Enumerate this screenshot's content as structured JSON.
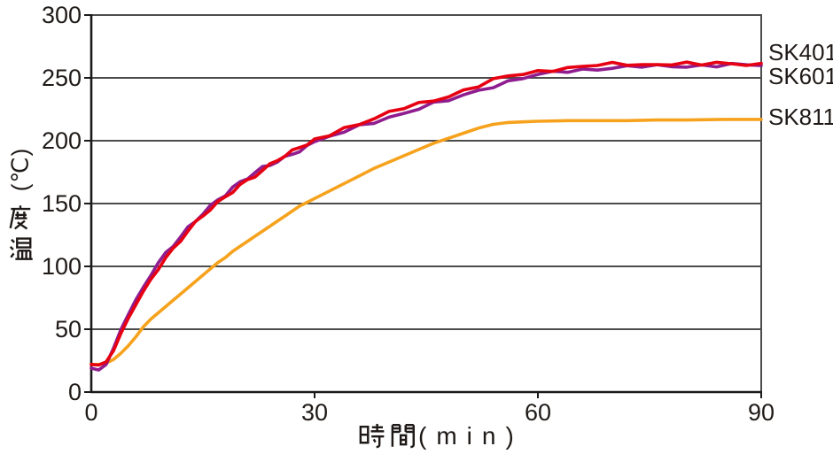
{
  "chart_data": {
    "type": "line",
    "title": "",
    "xlabel": "時間(min)",
    "ylabel": "温度(℃)",
    "xlabel_kanji": "時間",
    "xlabel_unit": "(min)",
    "ylabel_kanji": "温度",
    "ylabel_unit": "(℃)",
    "xlim": [
      0,
      90
    ],
    "ylim": [
      0,
      300
    ],
    "x_ticks": [
      0,
      30,
      60,
      90
    ],
    "y_ticks": [
      0,
      50,
      100,
      150,
      200,
      250,
      300
    ],
    "grid": "horizontal",
    "legend_position": "right-outside",
    "colors": {
      "grid": "#4c4c4c",
      "axis": "#1a1a1a",
      "text": "#1f1a17",
      "background": "#ffffff"
    },
    "series": [
      {
        "name": "SK401",
        "color": "#e60012",
        "points": [
          [
            0,
            22
          ],
          [
            1,
            21.5
          ],
          [
            2,
            24
          ],
          [
            3,
            33
          ],
          [
            4,
            47
          ],
          [
            5,
            59
          ],
          [
            6,
            70
          ],
          [
            7,
            80
          ],
          [
            8,
            90
          ],
          [
            9,
            99
          ],
          [
            10,
            107
          ],
          [
            11,
            114
          ],
          [
            12,
            121
          ],
          [
            13,
            128
          ],
          [
            14,
            134
          ],
          [
            15,
            140
          ],
          [
            16,
            145
          ],
          [
            17,
            150
          ],
          [
            18,
            155
          ],
          [
            19,
            160
          ],
          [
            20,
            165
          ],
          [
            21,
            169
          ],
          [
            22,
            173
          ],
          [
            23,
            177
          ],
          [
            24,
            181
          ],
          [
            25,
            185
          ],
          [
            26,
            188
          ],
          [
            27,
            191
          ],
          [
            28,
            194
          ],
          [
            29,
            197
          ],
          [
            30,
            200
          ],
          [
            32,
            205
          ],
          [
            34,
            210
          ],
          [
            36,
            214
          ],
          [
            38,
            218
          ],
          [
            40,
            222
          ],
          [
            42,
            226
          ],
          [
            44,
            229
          ],
          [
            46,
            232
          ],
          [
            48,
            236
          ],
          [
            50,
            240
          ],
          [
            52,
            244
          ],
          [
            54,
            248
          ],
          [
            56,
            251
          ],
          [
            58,
            253
          ],
          [
            60,
            255
          ],
          [
            62,
            257
          ],
          [
            64,
            258
          ],
          [
            66,
            259
          ],
          [
            68,
            260
          ],
          [
            70,
            260.5
          ],
          [
            72,
            261
          ],
          [
            74,
            260.5
          ],
          [
            76,
            261
          ],
          [
            78,
            261.5
          ],
          [
            80,
            261
          ],
          [
            82,
            260.5
          ],
          [
            84,
            261.5
          ],
          [
            86,
            261
          ],
          [
            88,
            261.5
          ],
          [
            90,
            261
          ]
        ]
      },
      {
        "name": "SK601",
        "color": "#8f1d8f",
        "points": [
          [
            0,
            19
          ],
          [
            1,
            17.5
          ],
          [
            2,
            22
          ],
          [
            3,
            35
          ],
          [
            4,
            50
          ],
          [
            5,
            62
          ],
          [
            6,
            73
          ],
          [
            7,
            83
          ],
          [
            8,
            93
          ],
          [
            9,
            102
          ],
          [
            10,
            110
          ],
          [
            11,
            117
          ],
          [
            12,
            124
          ],
          [
            13,
            131
          ],
          [
            14,
            137
          ],
          [
            15,
            143
          ],
          [
            16,
            148
          ],
          [
            17,
            153
          ],
          [
            18,
            157
          ],
          [
            19,
            162
          ],
          [
            20,
            166
          ],
          [
            21,
            170
          ],
          [
            22,
            174
          ],
          [
            23,
            178
          ],
          [
            24,
            181
          ],
          [
            25,
            184
          ],
          [
            26,
            187
          ],
          [
            27,
            190
          ],
          [
            28,
            193
          ],
          [
            29,
            196
          ],
          [
            30,
            199
          ],
          [
            32,
            203
          ],
          [
            34,
            207
          ],
          [
            36,
            211
          ],
          [
            38,
            215
          ],
          [
            40,
            219
          ],
          [
            42,
            222
          ],
          [
            44,
            226
          ],
          [
            46,
            229
          ],
          [
            48,
            232
          ],
          [
            50,
            236
          ],
          [
            52,
            240
          ],
          [
            54,
            244
          ],
          [
            56,
            247
          ],
          [
            58,
            250
          ],
          [
            60,
            252
          ],
          [
            62,
            254
          ],
          [
            64,
            255.5
          ],
          [
            66,
            256.5
          ],
          [
            68,
            257.5
          ],
          [
            70,
            258
          ],
          [
            72,
            258.5
          ],
          [
            74,
            259
          ],
          [
            76,
            259
          ],
          [
            78,
            259.5
          ],
          [
            80,
            259.5
          ],
          [
            82,
            260
          ],
          [
            84,
            260
          ],
          [
            86,
            260
          ],
          [
            88,
            260
          ],
          [
            90,
            260
          ]
        ]
      },
      {
        "name": "SK811",
        "color": "#f6a21d",
        "points": [
          [
            0,
            22
          ],
          [
            1,
            22
          ],
          [
            2,
            23
          ],
          [
            3,
            26
          ],
          [
            4,
            31
          ],
          [
            5,
            37
          ],
          [
            6,
            44
          ],
          [
            7,
            52
          ],
          [
            8,
            58
          ],
          [
            9,
            63
          ],
          [
            10,
            68
          ],
          [
            11,
            73
          ],
          [
            12,
            78
          ],
          [
            13,
            83
          ],
          [
            14,
            88
          ],
          [
            15,
            93
          ],
          [
            16,
            98
          ],
          [
            17,
            103
          ],
          [
            18,
            107
          ],
          [
            19,
            112
          ],
          [
            20,
            116
          ],
          [
            21,
            120
          ],
          [
            22,
            124
          ],
          [
            23,
            128
          ],
          [
            24,
            132
          ],
          [
            25,
            136
          ],
          [
            26,
            140
          ],
          [
            27,
            144
          ],
          [
            28,
            148
          ],
          [
            29,
            151
          ],
          [
            30,
            154
          ],
          [
            32,
            160
          ],
          [
            34,
            166
          ],
          [
            36,
            172
          ],
          [
            38,
            178
          ],
          [
            40,
            183
          ],
          [
            42,
            188
          ],
          [
            44,
            193
          ],
          [
            46,
            198
          ],
          [
            48,
            202
          ],
          [
            50,
            206
          ],
          [
            52,
            210
          ],
          [
            54,
            213
          ],
          [
            56,
            214.5
          ],
          [
            58,
            215
          ],
          [
            60,
            215.5
          ],
          [
            64,
            216
          ],
          [
            68,
            216
          ],
          [
            72,
            216
          ],
          [
            76,
            216.5
          ],
          [
            80,
            216.5
          ],
          [
            85,
            217
          ],
          [
            90,
            217
          ]
        ]
      }
    ]
  }
}
